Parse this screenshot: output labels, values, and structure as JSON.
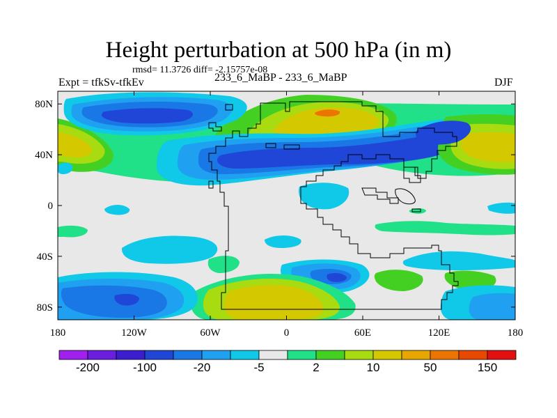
{
  "header": {
    "title": "Height perturbation at 500 hPa (in m)",
    "stats": "rmsd= 11.3726 diff= -2.15757e-08",
    "left_label": "Expt = tfkSv-tfkEv",
    "center_label": "233_6_MaBP - 233_6_MaBP",
    "season": "DJF"
  },
  "chart_data": {
    "type": "heatmap",
    "title": "Height perturbation at 500 hPa (in m)",
    "variable": "Height perturbation at 500 hPa",
    "units": "m",
    "season": "DJF",
    "xlim": [
      -180,
      180
    ],
    "ylim": [
      -90,
      90
    ],
    "x_ticks": [
      {
        "value": -180,
        "label": "180"
      },
      {
        "value": -120,
        "label": "120W"
      },
      {
        "value": -60,
        "label": "60W"
      },
      {
        "value": 0,
        "label": "0"
      },
      {
        "value": 60,
        "label": "60E"
      },
      {
        "value": 120,
        "label": "120E"
      },
      {
        "value": 180,
        "label": "180"
      }
    ],
    "y_ticks": [
      {
        "value": 80,
        "label": "80N"
      },
      {
        "value": 40,
        "label": "40N"
      },
      {
        "value": 0,
        "label": "0"
      },
      {
        "value": -40,
        "label": "40S"
      },
      {
        "value": -80,
        "label": "80S"
      }
    ],
    "colorbar": {
      "colors": [
        "#a020f0",
        "#6a1ee0",
        "#3c1ed0",
        "#2046d8",
        "#1a78e6",
        "#20a0f0",
        "#10c8e8",
        "#e8e8e8",
        "#20e088",
        "#44d022",
        "#a8dc10",
        "#d4c800",
        "#e8a600",
        "#ec7400",
        "#e84800",
        "#e41010"
      ],
      "tick_labels": [
        "-200",
        "-100",
        "-20",
        "-5",
        "2",
        "10",
        "50",
        "150"
      ]
    },
    "features": [
      {
        "name": "NH mid-latitude low band",
        "lon": [
          -60,
          140
        ],
        "lat": [
          25,
          55
        ],
        "value": -30
      },
      {
        "name": "Arctic high",
        "lon": [
          10,
          90
        ],
        "lat": [
          55,
          88
        ],
        "value": 35
      },
      {
        "name": "North Pacific high",
        "lon": [
          -180,
          -150
        ],
        "lat": [
          30,
          58
        ],
        "value": 25
      },
      {
        "name": "Eastern high ridge",
        "lon": [
          110,
          180
        ],
        "lat": [
          25,
          58
        ],
        "value": 20
      },
      {
        "name": "North polar low",
        "lon": [
          -170,
          -80
        ],
        "lat": [
          62,
          88
        ],
        "value": -30
      },
      {
        "name": "Antarctic high",
        "lon": [
          -40,
          60
        ],
        "lat": [
          -88,
          -60
        ],
        "value": 30
      },
      {
        "name": "Southern Pacific low",
        "lon": [
          -180,
          -90
        ],
        "lat": [
          -88,
          -62
        ],
        "value": -20
      },
      {
        "name": "Southern ocean low",
        "lon": [
          160,
          180
        ],
        "lat": [
          -88,
          -62
        ],
        "value": -20
      },
      {
        "name": "Southern mid-latitude low",
        "lon": [
          15,
          85
        ],
        "lat": [
          -68,
          -44
        ],
        "value": -12
      }
    ]
  }
}
